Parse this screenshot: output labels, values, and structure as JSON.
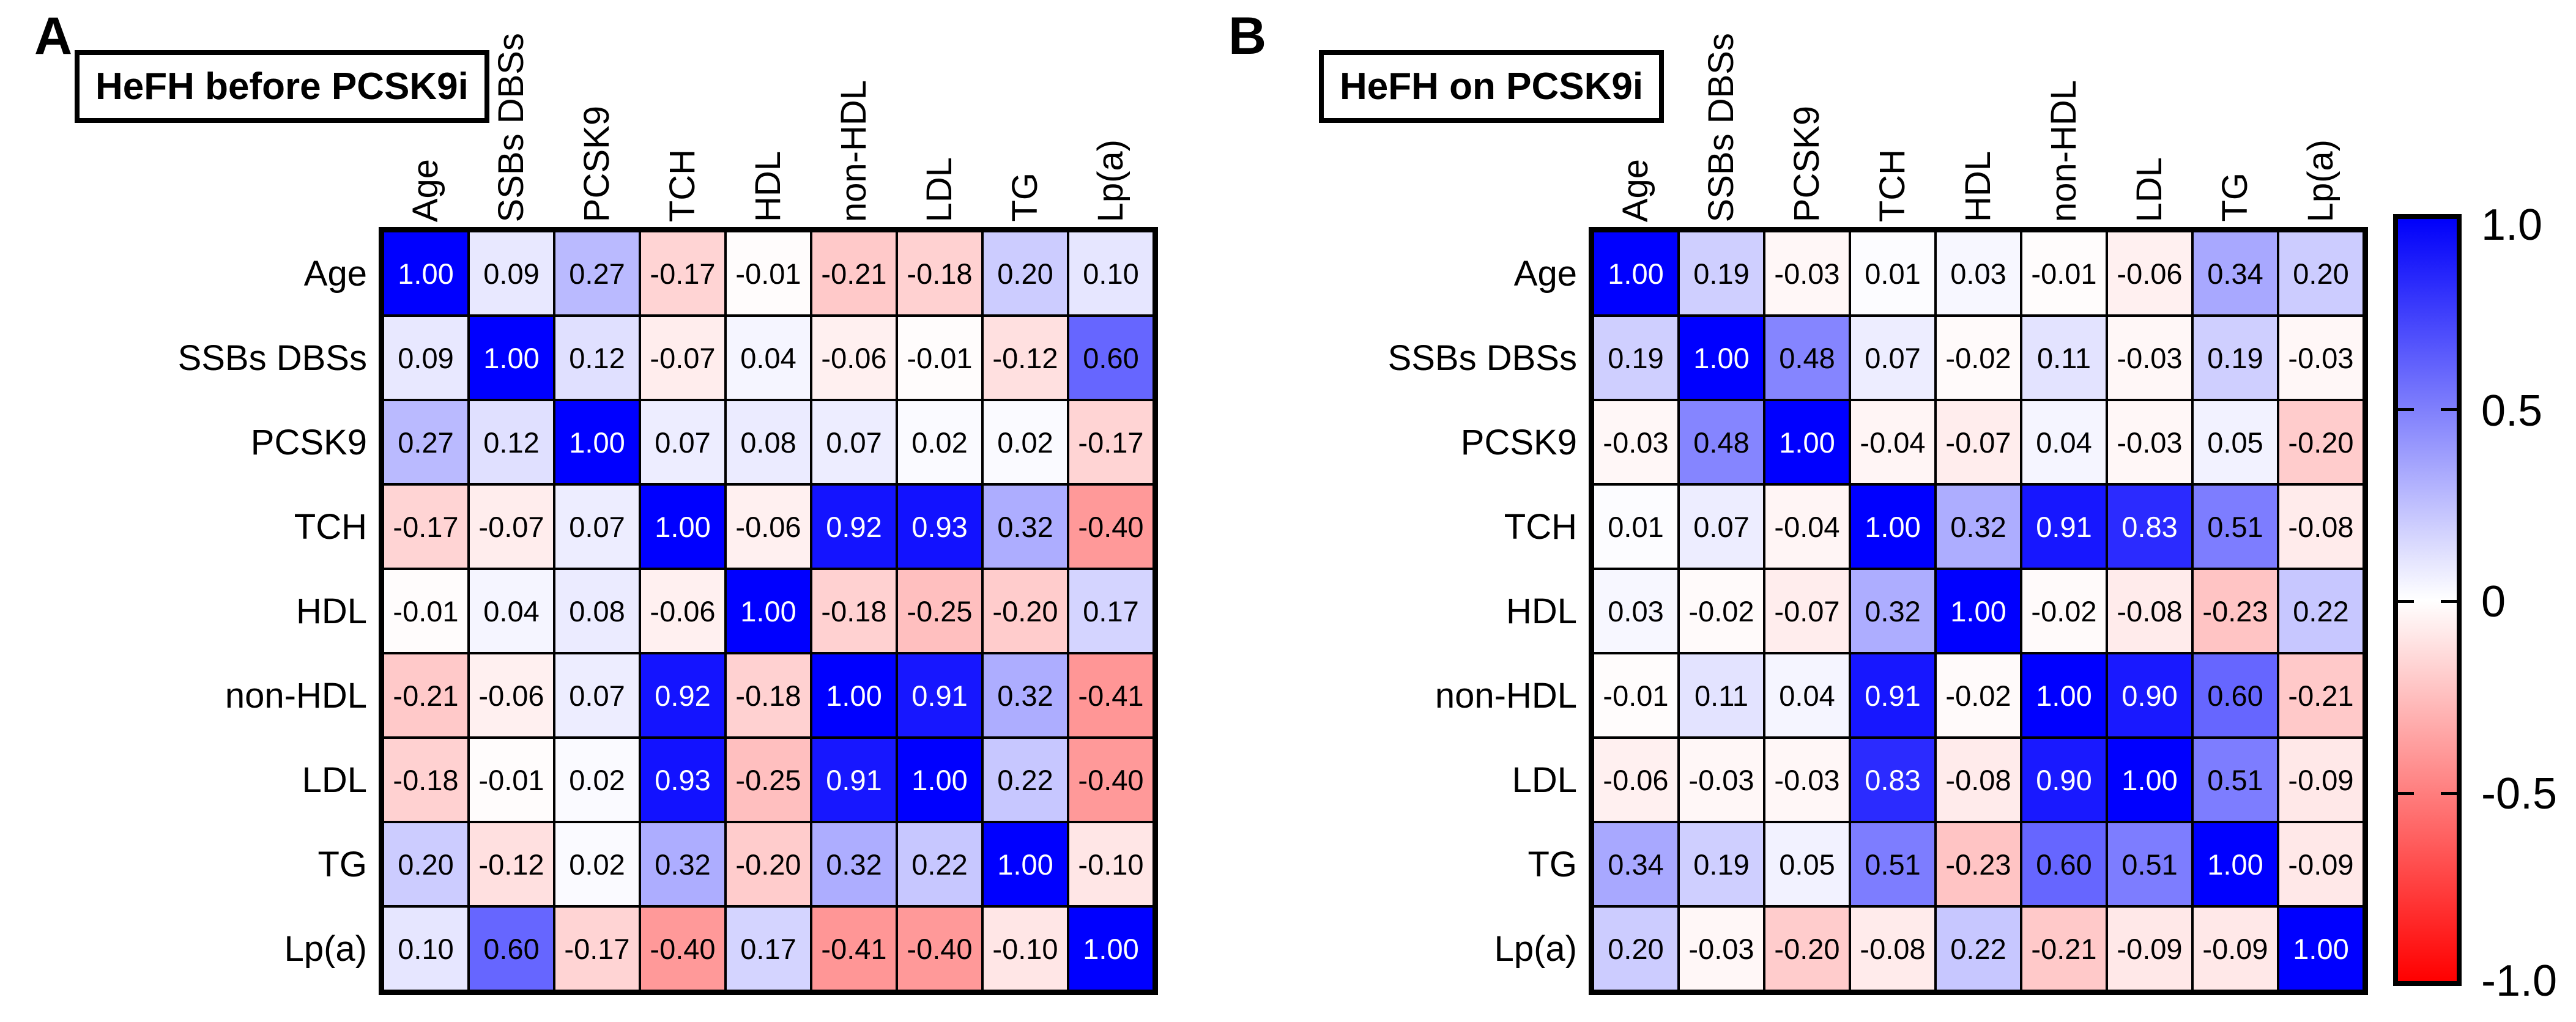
{
  "panels": [
    {
      "letter": "A",
      "title": "HeFH before PCSK9i"
    },
    {
      "letter": "B",
      "title": "HeFH on PCSK9i"
    }
  ],
  "variables": [
    "Age",
    "SSBs DBSs",
    "PCSK9",
    "TCH",
    "HDL",
    "non-HDL",
    "LDL",
    "TG",
    "Lp(a)"
  ],
  "colorbar": {
    "labels": [
      "1.0",
      "0.5",
      "0",
      "-0.5",
      "-1.0"
    ],
    "range": [
      -1,
      1
    ],
    "max_color": "#0000fa",
    "mid_color": "#ffffff",
    "min_color": "#ff0000"
  },
  "chart_data": [
    {
      "type": "heatmap",
      "title": "HeFH before PCSK9i",
      "x_categories": [
        "Age",
        "SSBs DBSs",
        "PCSK9",
        "TCH",
        "HDL",
        "non-HDL",
        "LDL",
        "TG",
        "Lp(a)"
      ],
      "y_categories": [
        "Age",
        "SSBs DBSs",
        "PCSK9",
        "TCH",
        "HDL",
        "non-HDL",
        "LDL",
        "TG",
        "Lp(a)"
      ],
      "values": [
        [
          1.0,
          0.09,
          0.27,
          -0.17,
          -0.01,
          -0.21,
          -0.18,
          0.2,
          0.1
        ],
        [
          0.09,
          1.0,
          0.12,
          -0.07,
          0.04,
          -0.06,
          -0.01,
          -0.12,
          0.6
        ],
        [
          0.27,
          0.12,
          1.0,
          0.07,
          0.08,
          0.07,
          0.02,
          0.02,
          -0.17
        ],
        [
          -0.17,
          -0.07,
          0.07,
          1.0,
          -0.06,
          0.92,
          0.93,
          0.32,
          -0.4
        ],
        [
          -0.01,
          0.04,
          0.08,
          -0.06,
          1.0,
          -0.18,
          -0.25,
          -0.2,
          0.17
        ],
        [
          -0.21,
          -0.06,
          0.07,
          0.92,
          -0.18,
          1.0,
          0.91,
          0.32,
          -0.41
        ],
        [
          -0.18,
          -0.01,
          0.02,
          0.93,
          -0.25,
          0.91,
          1.0,
          0.22,
          -0.4
        ],
        [
          0.2,
          -0.12,
          0.02,
          0.32,
          -0.2,
          0.32,
          0.22,
          1.0,
          -0.1
        ],
        [
          0.1,
          0.6,
          -0.17,
          -0.4,
          0.17,
          -0.41,
          -0.4,
          -0.1,
          1.0
        ]
      ],
      "colorbar_ticks": [
        1.0,
        0.5,
        0,
        -0.5,
        -1.0
      ],
      "colorbar_range": [
        -1,
        1
      ],
      "legend_position": "right",
      "grid": true
    },
    {
      "type": "heatmap",
      "title": "HeFH on PCSK9i",
      "x_categories": [
        "Age",
        "SSBs DBSs",
        "PCSK9",
        "TCH",
        "HDL",
        "non-HDL",
        "LDL",
        "TG",
        "Lp(a)"
      ],
      "y_categories": [
        "Age",
        "SSBs DBSs",
        "PCSK9",
        "TCH",
        "HDL",
        "non-HDL",
        "LDL",
        "TG",
        "Lp(a)"
      ],
      "values": [
        [
          1.0,
          0.19,
          -0.03,
          0.01,
          0.03,
          -0.01,
          -0.06,
          0.34,
          0.2
        ],
        [
          0.19,
          1.0,
          0.48,
          0.07,
          -0.02,
          0.11,
          -0.03,
          0.19,
          -0.03
        ],
        [
          -0.03,
          0.48,
          1.0,
          -0.04,
          -0.07,
          0.04,
          -0.03,
          0.05,
          -0.2
        ],
        [
          0.01,
          0.07,
          -0.04,
          1.0,
          0.32,
          0.91,
          0.83,
          0.51,
          -0.08
        ],
        [
          0.03,
          -0.02,
          -0.07,
          0.32,
          1.0,
          -0.02,
          -0.08,
          -0.23,
          0.22
        ],
        [
          -0.01,
          0.11,
          0.04,
          0.91,
          -0.02,
          1.0,
          0.9,
          0.6,
          -0.21
        ],
        [
          -0.06,
          -0.03,
          -0.03,
          0.83,
          -0.08,
          0.9,
          1.0,
          0.51,
          -0.09
        ],
        [
          0.34,
          0.19,
          0.05,
          0.51,
          -0.23,
          0.6,
          0.51,
          1.0,
          -0.09
        ],
        [
          0.2,
          -0.03,
          -0.2,
          -0.08,
          0.22,
          -0.21,
          -0.09,
          -0.09,
          1.0
        ]
      ],
      "colorbar_ticks": [
        1.0,
        0.5,
        0,
        -0.5,
        -1.0
      ],
      "colorbar_range": [
        -1,
        1
      ],
      "legend_position": "right",
      "grid": true
    }
  ]
}
